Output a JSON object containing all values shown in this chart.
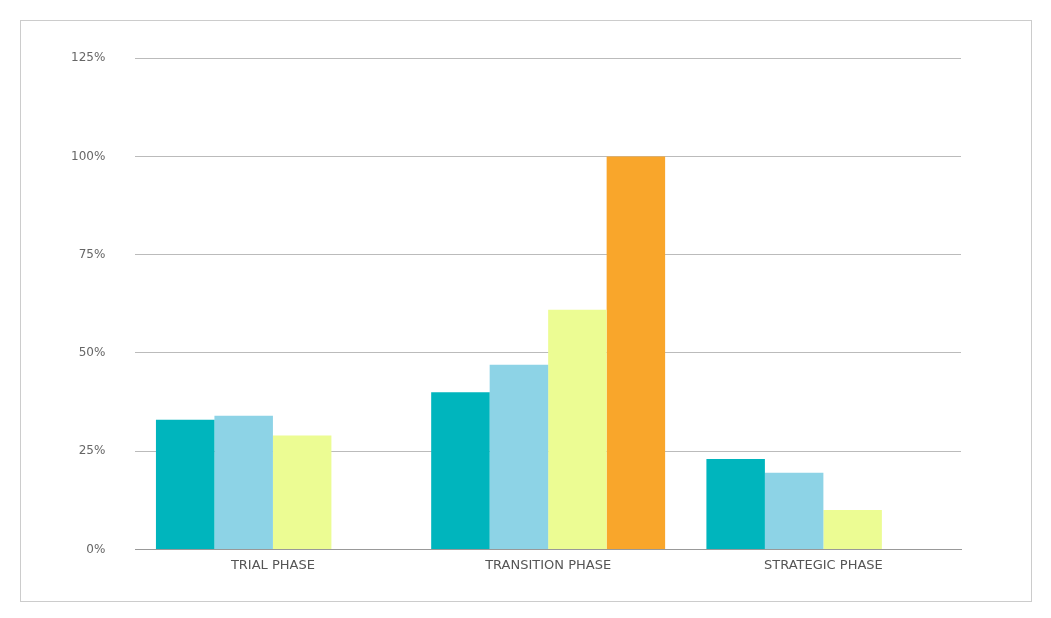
{
  "chart_data": {
    "type": "bar",
    "categories": [
      "TRIAL PHASE",
      "TRANSITION PHASE",
      "STRATEGIC PHASE"
    ],
    "series": [
      {
        "color": "#00b5bd",
        "values": [
          33,
          40,
          23
        ]
      },
      {
        "color": "#8dd3e6",
        "values": [
          34,
          47,
          19.5
        ]
      },
      {
        "color": "#ecfc93",
        "values": [
          29,
          61,
          10
        ]
      },
      {
        "color": "#f9a62b",
        "values": [
          null,
          100,
          null
        ]
      }
    ],
    "ylim": [
      0,
      125
    ],
    "yticks": [
      {
        "value": 0,
        "label": "0%"
      },
      {
        "value": 25,
        "label": "25%"
      },
      {
        "value": 50,
        "label": "50%"
      },
      {
        "value": 75,
        "label": "75%"
      },
      {
        "value": 100,
        "label": "100%"
      },
      {
        "value": 125,
        "label": "125%"
      }
    ],
    "grid": "y",
    "legend": false
  }
}
